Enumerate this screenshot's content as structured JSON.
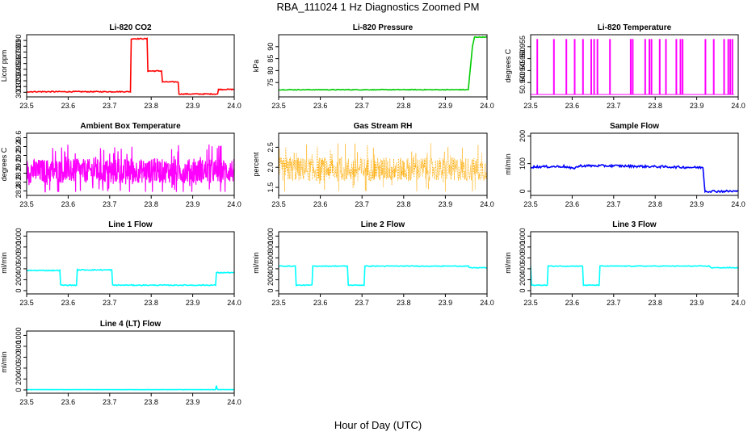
{
  "figure": {
    "title": "RBA_111024  1 Hz Diagnostics Zoomed PM",
    "xlabel": "Hour of Day (UTC)"
  },
  "chart_data": [
    {
      "type": "line",
      "title": "Li-820 CO2",
      "ylabel": "Licor ppm",
      "color": "#ff0000",
      "xlim": [
        23.5,
        24.0
      ],
      "xticks": [
        "23.5",
        "23.6",
        "23.7",
        "23.8",
        "23.9",
        "24.0"
      ],
      "ylim": [
        292,
        400
      ],
      "yticks": [
        "300",
        "310",
        "320",
        "330",
        "340",
        "350",
        "360",
        "370",
        "380",
        "390"
      ],
      "noise": 0.8,
      "series": [
        {
          "x": [
            23.5,
            23.75,
            23.752,
            23.79,
            23.792,
            23.825,
            23.827,
            23.865,
            23.867,
            23.96,
            23.962,
            24.0
          ],
          "values": [
            301,
            301,
            393,
            393,
            337,
            337,
            318,
            318,
            297,
            297,
            305,
            305
          ]
        }
      ]
    },
    {
      "type": "line",
      "title": "Li-820 Pressure",
      "ylabel": "kPa",
      "color": "#00cc00",
      "xlim": [
        23.5,
        24.0
      ],
      "xticks": [
        "23.5",
        "23.6",
        "23.7",
        "23.8",
        "23.9",
        "24.0"
      ],
      "ylim": [
        69,
        95
      ],
      "yticks": [
        "75",
        "80",
        "85",
        "90"
      ],
      "noise": 0.15,
      "series": [
        {
          "x": [
            23.5,
            23.93,
            23.955,
            23.965,
            23.97,
            24.0
          ],
          "values": [
            72,
            72,
            72,
            90,
            94,
            94
          ]
        }
      ]
    },
    {
      "type": "line",
      "title": "Li-820 Temperature",
      "ylabel": "degrees C",
      "color": "#ff00ff",
      "xlim": [
        23.5,
        24.0
      ],
      "xticks": [
        "23.5",
        "23.6",
        "23.7",
        "23.8",
        "23.9",
        "24.0"
      ],
      "ylim": [
        50.934,
        50.96
      ],
      "yticks": [
        "50.940",
        "50.945",
        "50.950",
        "50.955"
      ],
      "baseline": 50.935,
      "spike_value": 50.958,
      "spikes": [
        23.515,
        23.555,
        23.585,
        23.605,
        23.625,
        23.645,
        23.652,
        23.66,
        23.69,
        23.74,
        23.745,
        23.775,
        23.785,
        23.79,
        23.81,
        23.825,
        23.85,
        23.86,
        23.865,
        23.92,
        23.94,
        23.965,
        23.975,
        23.98,
        23.985
      ]
    },
    {
      "type": "line",
      "title": "Ambient Box Temperature",
      "ylabel": "degrees C",
      "color": "#ff00ff",
      "xlim": [
        23.5,
        24.0
      ],
      "xticks": [
        "23.5",
        "23.6",
        "23.7",
        "23.8",
        "23.9",
        "24.0"
      ],
      "ylim": [
        28.3,
        29.7
      ],
      "yticks": [
        "28.4",
        "28.6",
        "28.8",
        "29.0",
        "29.2",
        "29.4",
        "29.6"
      ],
      "noise_min": 28.38,
      "noise_max": 29.6,
      "noise_center": 28.85
    },
    {
      "type": "scatter",
      "title": "Gas Stream RH",
      "ylabel": "percent",
      "color": "#ffaa00",
      "xlim": [
        23.5,
        24.0
      ],
      "xticks": [
        "23.5",
        "23.6",
        "23.7",
        "23.8",
        "23.9",
        "24.0"
      ],
      "ylim": [
        1.3,
        2.85
      ],
      "yticks": [
        "1.5",
        "2.0",
        "2.5"
      ],
      "noise_min": 1.4,
      "noise_max": 2.75,
      "noise_center": 1.95
    },
    {
      "type": "line",
      "title": "Sample Flow",
      "ylabel": "ml/min",
      "color": "#0000ff",
      "xlim": [
        23.5,
        24.0
      ],
      "xticks": [
        "23.5",
        "23.6",
        "23.7",
        "23.8",
        "23.9",
        "24.0"
      ],
      "ylim": [
        -15,
        210
      ],
      "yticks": [
        "0",
        "100",
        "200"
      ],
      "noise": 4,
      "series": [
        {
          "x": [
            23.5,
            23.58,
            23.6,
            23.62,
            23.7,
            23.9,
            23.915,
            23.92,
            24.0
          ],
          "values": [
            88,
            90,
            82,
            92,
            92,
            86,
            86,
            0,
            0
          ]
        }
      ]
    },
    {
      "type": "line",
      "title": "Line 1 Flow",
      "ylabel": "ml/min",
      "color": "#00ffff",
      "xlim": [
        23.5,
        24.0
      ],
      "xticks": [
        "23.5",
        "23.6",
        "23.7",
        "23.8",
        "23.9",
        "24.0"
      ],
      "ylim": [
        -60,
        1080
      ],
      "yticks": [
        "0",
        "200",
        "400",
        "600",
        "800",
        "1000"
      ],
      "noise": 8,
      "series": [
        {
          "x": [
            23.5,
            23.58,
            23.582,
            23.62,
            23.622,
            23.705,
            23.707,
            23.955,
            23.957,
            24.0
          ],
          "values": [
            370,
            370,
            100,
            100,
            380,
            380,
            100,
            100,
            330,
            330
          ]
        }
      ]
    },
    {
      "type": "line",
      "title": "Line 2 Flow",
      "ylabel": "ml/min",
      "color": "#00ffff",
      "xlim": [
        23.5,
        24.0
      ],
      "xticks": [
        "23.5",
        "23.6",
        "23.7",
        "23.8",
        "23.9",
        "24.0"
      ],
      "ylim": [
        -60,
        1080
      ],
      "yticks": [
        "0",
        "200",
        "400",
        "600",
        "800",
        "1000"
      ],
      "noise": 6,
      "series": [
        {
          "x": [
            23.5,
            23.54,
            23.542,
            23.58,
            23.582,
            23.665,
            23.667,
            23.705,
            23.707,
            23.955,
            23.957,
            24.0
          ],
          "values": [
            450,
            450,
            100,
            100,
            450,
            450,
            100,
            100,
            450,
            450,
            420,
            420
          ]
        }
      ]
    },
    {
      "type": "line",
      "title": "Line 3 Flow",
      "ylabel": "ml/min",
      "color": "#00ffff",
      "xlim": [
        23.5,
        24.0
      ],
      "xticks": [
        "23.5",
        "23.6",
        "23.7",
        "23.8",
        "23.9",
        "24.0"
      ],
      "ylim": [
        -60,
        1080
      ],
      "yticks": [
        "0",
        "200",
        "400",
        "600",
        "800",
        "1000"
      ],
      "noise": 6,
      "series": [
        {
          "x": [
            23.5,
            23.502,
            23.54,
            23.542,
            23.625,
            23.627,
            23.665,
            23.667,
            23.93,
            23.935,
            24.0
          ],
          "values": [
            450,
            100,
            100,
            450,
            450,
            100,
            100,
            450,
            450,
            420,
            420
          ]
        }
      ]
    },
    {
      "type": "line",
      "title": "Line 4 (LT) Flow",
      "ylabel": "ml/min",
      "color": "#00ffff",
      "xlim": [
        23.5,
        24.0
      ],
      "xticks": [
        "23.5",
        "23.6",
        "23.7",
        "23.8",
        "23.9",
        "24.0"
      ],
      "ylim": [
        -60,
        1080
      ],
      "yticks": [
        "0",
        "200",
        "400",
        "600",
        "800",
        "1000"
      ],
      "noise": 2,
      "series": [
        {
          "x": [
            23.5,
            23.955,
            23.957,
            23.959,
            23.961,
            24.0
          ],
          "values": [
            5,
            5,
            80,
            20,
            5,
            5
          ]
        }
      ]
    }
  ]
}
